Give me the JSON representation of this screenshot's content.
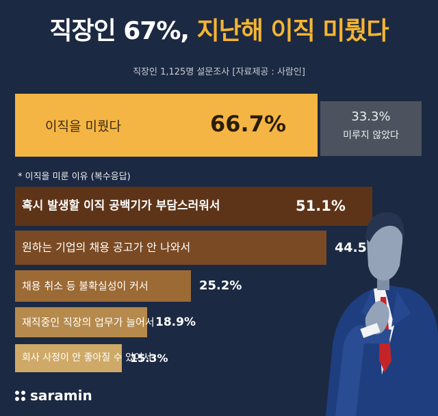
{
  "header": {
    "title_white": "직장인 67%,",
    "title_orange": "지난해 이직 미뤘다",
    "subtitle": "직장인 1,125명 설문조사 [자료제공 : 사람인]"
  },
  "summary": {
    "main_label": "이직을 미뤘다",
    "main_value": "66.7%",
    "other_value": "33.3%",
    "other_label": "미루지 않았다"
  },
  "reasons_note": "* 이직을 미룬 이유 (복수응답)",
  "brand": "saramin",
  "colors": {
    "background": "#1c2942",
    "accent_orange": "#f4b544",
    "gray_box": "#4d535e",
    "bar_colors": [
      "#5e3418",
      "#7a4a24",
      "#9c6a35",
      "#b68a4c",
      "#cfa967"
    ]
  },
  "chart_data": [
    {
      "type": "bar",
      "categories": [
        "이직을 미뤘다",
        "미루지 않았다"
      ],
      "values": [
        66.7,
        33.3
      ]
    },
    {
      "type": "bar",
      "orientation": "horizontal",
      "categories": [
        "혹시 발생할 이직 공백기가 부담스러워서",
        "원하는 기업의 채용 공고가 안 나와서",
        "채용 취소 등 불확실성이 커서",
        "재직중인 직장의 업무가 늘어서",
        "회사 사정이 안 좋아질 수 있어서"
      ],
      "values": [
        51.1,
        44.5,
        25.2,
        18.9,
        15.3
      ],
      "value_labels": [
        "51.1%",
        "44.5%",
        "25.2%",
        "18.9%",
        "15.3%"
      ]
    }
  ]
}
